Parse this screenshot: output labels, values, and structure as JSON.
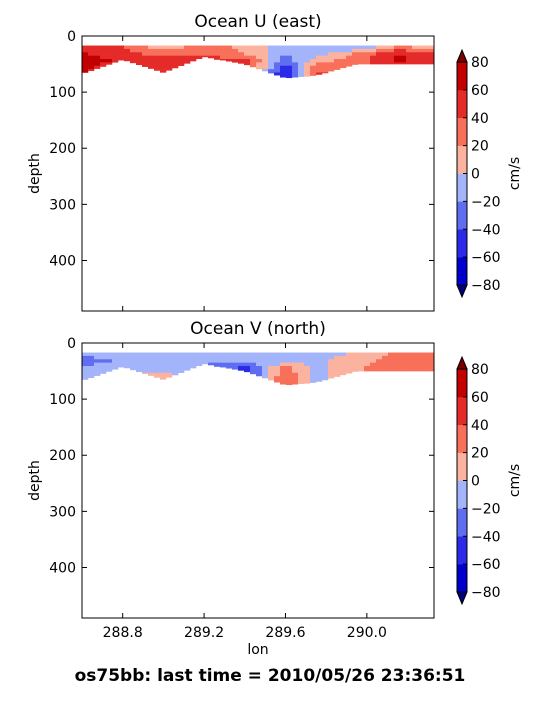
{
  "suptitle": "os75bb: last time = 2010/05/26 23:36:51",
  "colors": {
    "levels": [
      -80,
      -60,
      -40,
      -20,
      0,
      20,
      40,
      60,
      80
    ],
    "bands": [
      "#0000cc",
      "#2a2ae8",
      "#5f6df0",
      "#a3b4fa",
      "#fbb3a0",
      "#f8705a",
      "#e52a2a",
      "#c20000"
    ],
    "under": "#00007a",
    "over": "#7a0000"
  },
  "chart_data": [
    {
      "type": "heatmap",
      "title": "Ocean U (east)",
      "xlabel": "",
      "ylabel": "depth",
      "xlim": [
        288.6,
        290.33
      ],
      "ylim": [
        490,
        0
      ],
      "xticks": [
        288.8,
        289.2,
        289.6,
        290.0
      ],
      "xticklabels": [
        "",
        "",
        "",
        ""
      ],
      "yticks": [
        0,
        100,
        200,
        300,
        400
      ],
      "colorbar": {
        "label": "cm/s",
        "ticks": [
          80,
          60,
          40,
          20,
          0,
          -20,
          -40,
          -60,
          -80
        ]
      },
      "units": "cm/s",
      "x_nodes": [
        288.62,
        288.8,
        289.0,
        289.2,
        289.4,
        289.6,
        289.75,
        289.95,
        290.15,
        290.33
      ],
      "depth_nodes": [
        20,
        32,
        44,
        56,
        68
      ],
      "cutoff_depth": [
        65,
        42,
        65,
        37,
        50,
        75,
        70,
        50,
        50,
        50
      ],
      "values": [
        [
          45,
          40,
          10,
          30,
          15,
          -15,
          -20,
          -20,
          25,
          10
        ],
        [
          60,
          50,
          30,
          40,
          20,
          -20,
          -10,
          25,
          60,
          50
        ],
        [
          70,
          55,
          50,
          45,
          50,
          -30,
          10,
          30,
          65,
          45
        ],
        [
          65,
          45,
          45,
          40,
          55,
          -55,
          30,
          30,
          55,
          35
        ],
        [
          55,
          40,
          40,
          35,
          45,
          -65,
          45,
          25,
          45,
          25
        ]
      ]
    },
    {
      "type": "heatmap",
      "title": "Ocean V (north)",
      "xlabel": "lon",
      "ylabel": "depth",
      "xlim": [
        288.6,
        290.33
      ],
      "ylim": [
        490,
        0
      ],
      "xticks": [
        288.8,
        289.2,
        289.6,
        290.0
      ],
      "xticklabels": [
        "288.8",
        "289.2",
        "289.6",
        "290.0"
      ],
      "yticks": [
        0,
        100,
        200,
        300,
        400
      ],
      "colorbar": {
        "label": "cm/s",
        "ticks": [
          80,
          60,
          40,
          20,
          0,
          -20,
          -40,
          -60,
          -80
        ]
      },
      "units": "cm/s",
      "x_nodes": [
        288.62,
        288.8,
        289.0,
        289.2,
        289.4,
        289.6,
        289.75,
        289.95,
        290.15,
        290.33
      ],
      "depth_nodes": [
        20,
        32,
        44,
        56,
        68
      ],
      "cutoff_depth": [
        65,
        42,
        65,
        37,
        50,
        75,
        70,
        50,
        50,
        50
      ],
      "values": [
        [
          -15,
          -10,
          -5,
          -10,
          -5,
          -5,
          -10,
          5,
          25,
          35
        ],
        [
          -30,
          -15,
          -10,
          -15,
          -20,
          -10,
          -5,
          10,
          30,
          40
        ],
        [
          -15,
          -5,
          -5,
          -20,
          -45,
          25,
          -5,
          15,
          35,
          30
        ],
        [
          -10,
          -5,
          5,
          -15,
          -55,
          35,
          -5,
          15,
          35,
          25
        ],
        [
          -20,
          -5,
          10,
          -10,
          -50,
          45,
          -5,
          10,
          30,
          20
        ]
      ]
    }
  ]
}
